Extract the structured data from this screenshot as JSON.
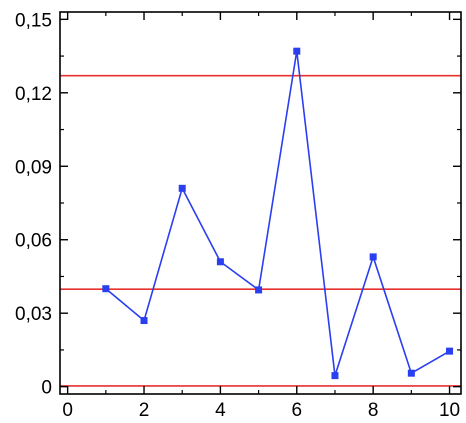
{
  "chart_data": {
    "type": "line",
    "title": "",
    "xlabel": "",
    "ylabel": "",
    "xlim": [
      -0.2,
      10.3
    ],
    "ylim": [
      -0.003,
      0.153
    ],
    "x_ticks": [
      0,
      2,
      4,
      6,
      8,
      10
    ],
    "x_tick_labels": [
      "0",
      "2",
      "4",
      "6",
      "8",
      "10"
    ],
    "y_ticks": [
      0,
      0.03,
      0.06,
      0.09,
      0.12,
      0.15
    ],
    "y_tick_labels": [
      "0",
      "0,03",
      "0,06",
      "0,09",
      "0,12",
      "0,15"
    ],
    "grid": false,
    "legend": false,
    "series": [
      {
        "x": [
          1,
          2,
          3,
          4,
          5,
          6,
          7,
          8,
          9,
          10
        ],
        "values": [
          0.04,
          0.027,
          0.081,
          0.051,
          0.0395,
          0.137,
          0.0045,
          0.053,
          0.0055,
          0.0145
        ],
        "color": "#2a3ff0",
        "marker": "square"
      }
    ],
    "reference_lines": [
      {
        "y": 0.127,
        "color": "#e8312f"
      },
      {
        "y": 0.0398,
        "color": "#e8312f"
      },
      {
        "y": 0.0003,
        "color": "#e8312f"
      }
    ]
  }
}
